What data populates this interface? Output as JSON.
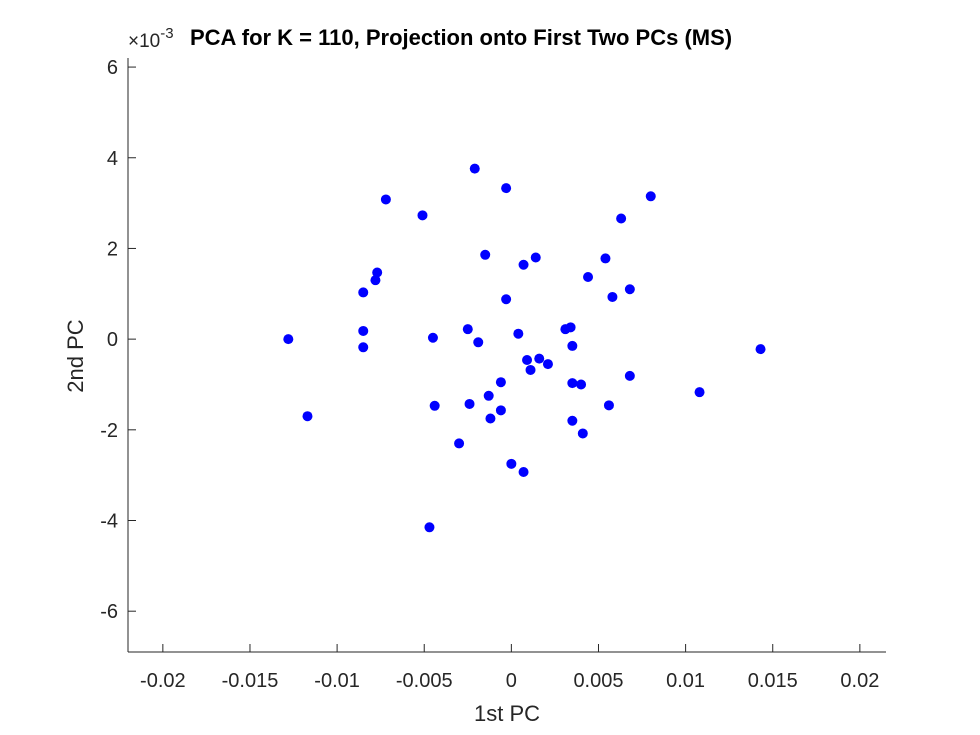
{
  "chart_data": {
    "type": "scatter",
    "title": "PCA for K = 110, Projection onto First Two PCs (MS)",
    "xlabel": "1st PC",
    "ylabel": "2nd PC",
    "y_exponent_base": "10",
    "y_exponent_power": "-3",
    "xlim": [
      -0.022,
      0.0215
    ],
    "ylim": [
      -6.9,
      6.2
    ],
    "y_unit_scale": 0.001,
    "x_ticks": [
      -0.02,
      -0.015,
      -0.01,
      -0.005,
      0,
      0.005,
      0.01,
      0.015,
      0.02
    ],
    "x_tick_labels": [
      "-0.02",
      "-0.015",
      "-0.01",
      "-0.005",
      "0",
      "0.005",
      "0.01",
      "0.015",
      "0.02"
    ],
    "y_ticks": [
      -6,
      -4,
      -2,
      0,
      2,
      4,
      6
    ],
    "y_tick_labels": [
      "-6",
      "-4",
      "-2",
      "0",
      "2",
      "4",
      "6"
    ],
    "grid": false,
    "marker_color": "#0000ff",
    "series": [
      {
        "points": [
          [
            -0.0128,
            0.0
          ],
          [
            -0.0117,
            -1.7
          ],
          [
            -0.0085,
            1.03
          ],
          [
            -0.0085,
            0.18
          ],
          [
            -0.0085,
            -0.18
          ],
          [
            -0.0078,
            1.3
          ],
          [
            -0.0077,
            1.47
          ],
          [
            -0.0072,
            3.08
          ],
          [
            -0.0051,
            2.73
          ],
          [
            -0.0047,
            -4.15
          ],
          [
            -0.0045,
            0.03
          ],
          [
            -0.0044,
            -1.47
          ],
          [
            -0.003,
            -2.3
          ],
          [
            -0.0025,
            0.22
          ],
          [
            -0.0024,
            -1.43
          ],
          [
            -0.0021,
            3.76
          ],
          [
            -0.0019,
            -0.07
          ],
          [
            -0.0015,
            1.86
          ],
          [
            -0.0013,
            -1.25
          ],
          [
            -0.0012,
            -1.75
          ],
          [
            -0.0006,
            -0.95
          ],
          [
            -0.0006,
            -1.57
          ],
          [
            -0.0003,
            3.33
          ],
          [
            -0.0003,
            0.88
          ],
          [
            0.0,
            -2.75
          ],
          [
            0.0004,
            0.12
          ],
          [
            0.0007,
            1.64
          ],
          [
            0.0007,
            -2.93
          ],
          [
            0.0009,
            -0.46
          ],
          [
            0.0011,
            -0.68
          ],
          [
            0.0014,
            1.8
          ],
          [
            0.0016,
            -0.43
          ],
          [
            0.0021,
            -0.55
          ],
          [
            0.0031,
            0.22
          ],
          [
            0.0034,
            0.26
          ],
          [
            0.0035,
            -0.15
          ],
          [
            0.0035,
            -0.97
          ],
          [
            0.0035,
            -1.8
          ],
          [
            0.004,
            -1.0
          ],
          [
            0.0041,
            -2.08
          ],
          [
            0.0044,
            1.37
          ],
          [
            0.0054,
            1.78
          ],
          [
            0.0056,
            -1.46
          ],
          [
            0.0058,
            0.93
          ],
          [
            0.0063,
            2.66
          ],
          [
            0.0068,
            1.1
          ],
          [
            0.0068,
            -0.81
          ],
          [
            0.008,
            3.15
          ],
          [
            0.0108,
            -1.17
          ],
          [
            0.0143,
            -0.22
          ]
        ]
      }
    ]
  }
}
